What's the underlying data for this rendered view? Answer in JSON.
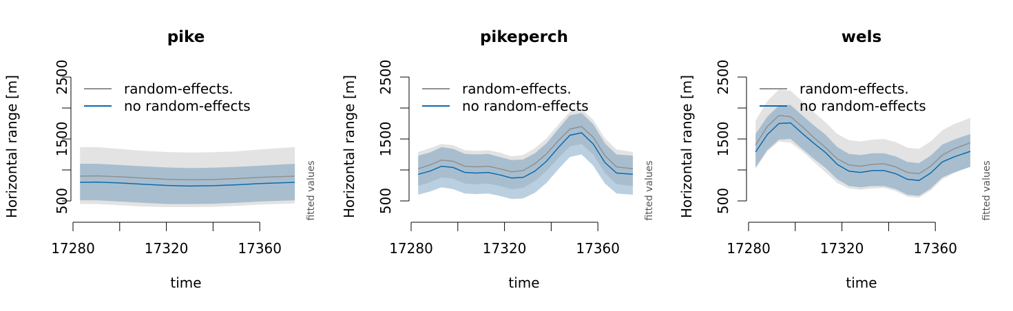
{
  "colors": {
    "random_band": "#e3e3e3",
    "random_line": "#909090",
    "fixed_band": "#3a78a8",
    "fixed_band_opacity": 0.35,
    "fixed_line": "#0a6aad"
  },
  "chart_data": [
    {
      "type": "line",
      "title": "pike",
      "xlabel": "time",
      "ylabel": "Horizontal range [m]",
      "side_label": "fitted values",
      "xlim": [
        17280,
        17375
      ],
      "ylim": [
        500,
        2500
      ],
      "x_ticks": [
        17280,
        17300,
        17320,
        17340,
        17360
      ],
      "x_tick_labels": [
        "17280",
        "17320",
        "17360"
      ],
      "y_ticks": [
        500,
        1000,
        1500,
        2000,
        2500
      ],
      "y_tick_labels": [
        "500",
        "1500",
        "2500"
      ],
      "legend": {
        "position": "top-left",
        "entries": [
          "random-effects.",
          "no random-effects"
        ]
      },
      "x": [
        17283,
        17290,
        17300,
        17310,
        17320,
        17330,
        17340,
        17350,
        17360,
        17375
      ],
      "series": [
        {
          "name": "random-effects.",
          "values": [
            900,
            905,
            890,
            870,
            850,
            840,
            845,
            860,
            880,
            900
          ],
          "lower": [
            450,
            450,
            430,
            410,
            400,
            400,
            405,
            420,
            440,
            460
          ],
          "upper": [
            1370,
            1370,
            1340,
            1310,
            1290,
            1280,
            1285,
            1300,
            1330,
            1370
          ]
        },
        {
          "name": "no random-effects",
          "values": [
            800,
            805,
            790,
            770,
            750,
            740,
            745,
            760,
            780,
            800
          ],
          "lower": [
            510,
            510,
            490,
            470,
            450,
            450,
            455,
            470,
            490,
            510
          ],
          "upper": [
            1100,
            1100,
            1080,
            1060,
            1040,
            1030,
            1035,
            1050,
            1070,
            1100
          ]
        }
      ]
    },
    {
      "type": "line",
      "title": "pikeperch",
      "xlabel": "time",
      "ylabel": "Horizontal range [m]",
      "side_label": "fitted values",
      "xlim": [
        17280,
        17375
      ],
      "ylim": [
        500,
        2500
      ],
      "x_ticks": [
        17280,
        17300,
        17320,
        17340,
        17360
      ],
      "x_tick_labels": [
        "17280",
        "17320",
        "17360"
      ],
      "y_ticks": [
        500,
        1000,
        1500,
        2000,
        2500
      ],
      "y_tick_labels": [
        "500",
        "1500",
        "2500"
      ],
      "legend": {
        "position": "top-left",
        "entries": [
          "random-effects.",
          "no random-effects"
        ]
      },
      "x": [
        17283,
        17288,
        17293,
        17298,
        17303,
        17308,
        17313,
        17318,
        17323,
        17328,
        17333,
        17338,
        17343,
        17348,
        17353,
        17358,
        17363,
        17368,
        17375
      ],
      "series": [
        {
          "name": "random-effects.",
          "values": [
            1020,
            1080,
            1160,
            1140,
            1060,
            1050,
            1060,
            1020,
            970,
            990,
            1100,
            1260,
            1470,
            1660,
            1700,
            1530,
            1230,
            1050,
            1020
          ],
          "lower": [
            740,
            800,
            880,
            860,
            780,
            770,
            780,
            740,
            690,
            710,
            820,
            980,
            1190,
            1380,
            1420,
            1250,
            950,
            770,
            740
          ],
          "upper": [
            1290,
            1350,
            1420,
            1400,
            1320,
            1310,
            1320,
            1280,
            1220,
            1240,
            1350,
            1510,
            1730,
            1940,
            1980,
            1810,
            1510,
            1330,
            1290
          ]
        },
        {
          "name": "no random-effects",
          "values": [
            930,
            980,
            1060,
            1040,
            960,
            950,
            960,
            920,
            870,
            880,
            980,
            1140,
            1360,
            1560,
            1600,
            1420,
            1120,
            950,
            930
          ],
          "lower": [
            600,
            650,
            720,
            690,
            620,
            610,
            620,
            580,
            530,
            540,
            630,
            790,
            1010,
            1210,
            1250,
            1070,
            780,
            620,
            600
          ],
          "upper": [
            1230,
            1280,
            1370,
            1340,
            1260,
            1250,
            1260,
            1210,
            1160,
            1170,
            1270,
            1430,
            1660,
            1880,
            1920,
            1740,
            1430,
            1250,
            1230
          ]
        }
      ]
    },
    {
      "type": "line",
      "title": "wels",
      "xlabel": "time",
      "ylabel": "Horizontal range [m]",
      "side_label": "fitted values",
      "xlim": [
        17280,
        17375
      ],
      "ylim": [
        500,
        2500
      ],
      "x_ticks": [
        17280,
        17300,
        17320,
        17340,
        17360
      ],
      "x_tick_labels": [
        "17280",
        "17320",
        "17360"
      ],
      "y_ticks": [
        500,
        1000,
        1500,
        2000,
        2500
      ],
      "y_tick_labels": [
        "500",
        "1500",
        "2500"
      ],
      "legend": {
        "position": "top-left",
        "entries": [
          "random-effects.",
          "no random-effects"
        ]
      },
      "x": [
        17283,
        17288,
        17293,
        17298,
        17303,
        17308,
        17313,
        17318,
        17323,
        17328,
        17333,
        17338,
        17343,
        17348,
        17353,
        17358,
        17363,
        17368,
        17375
      ],
      "series": [
        {
          "name": "random-effects.",
          "values": [
            1400,
            1700,
            1880,
            1860,
            1700,
            1520,
            1360,
            1180,
            1080,
            1060,
            1090,
            1100,
            1050,
            960,
            940,
            1060,
            1240,
            1340,
            1440
          ],
          "lower": [
            1020,
            1300,
            1460,
            1440,
            1300,
            1130,
            960,
            790,
            700,
            680,
            700,
            710,
            660,
            570,
            550,
            670,
            850,
            950,
            1050
          ],
          "upper": [
            1800,
            2110,
            2300,
            2280,
            2110,
            1930,
            1770,
            1580,
            1480,
            1460,
            1490,
            1500,
            1450,
            1360,
            1340,
            1460,
            1640,
            1740,
            1840
          ]
        },
        {
          "name": "no random-effects",
          "values": [
            1290,
            1570,
            1750,
            1760,
            1590,
            1430,
            1280,
            1090,
            980,
            960,
            990,
            990,
            940,
            850,
            830,
            950,
            1130,
            1210,
            1300
          ],
          "lower": [
            1040,
            1320,
            1490,
            1500,
            1340,
            1180,
            1030,
            850,
            740,
            720,
            740,
            740,
            690,
            600,
            580,
            700,
            880,
            960,
            1050
          ],
          "upper": [
            1580,
            1860,
            2040,
            2050,
            1880,
            1720,
            1570,
            1370,
            1260,
            1240,
            1270,
            1270,
            1220,
            1130,
            1110,
            1230,
            1410,
            1490,
            1580
          ]
        }
      ]
    }
  ]
}
